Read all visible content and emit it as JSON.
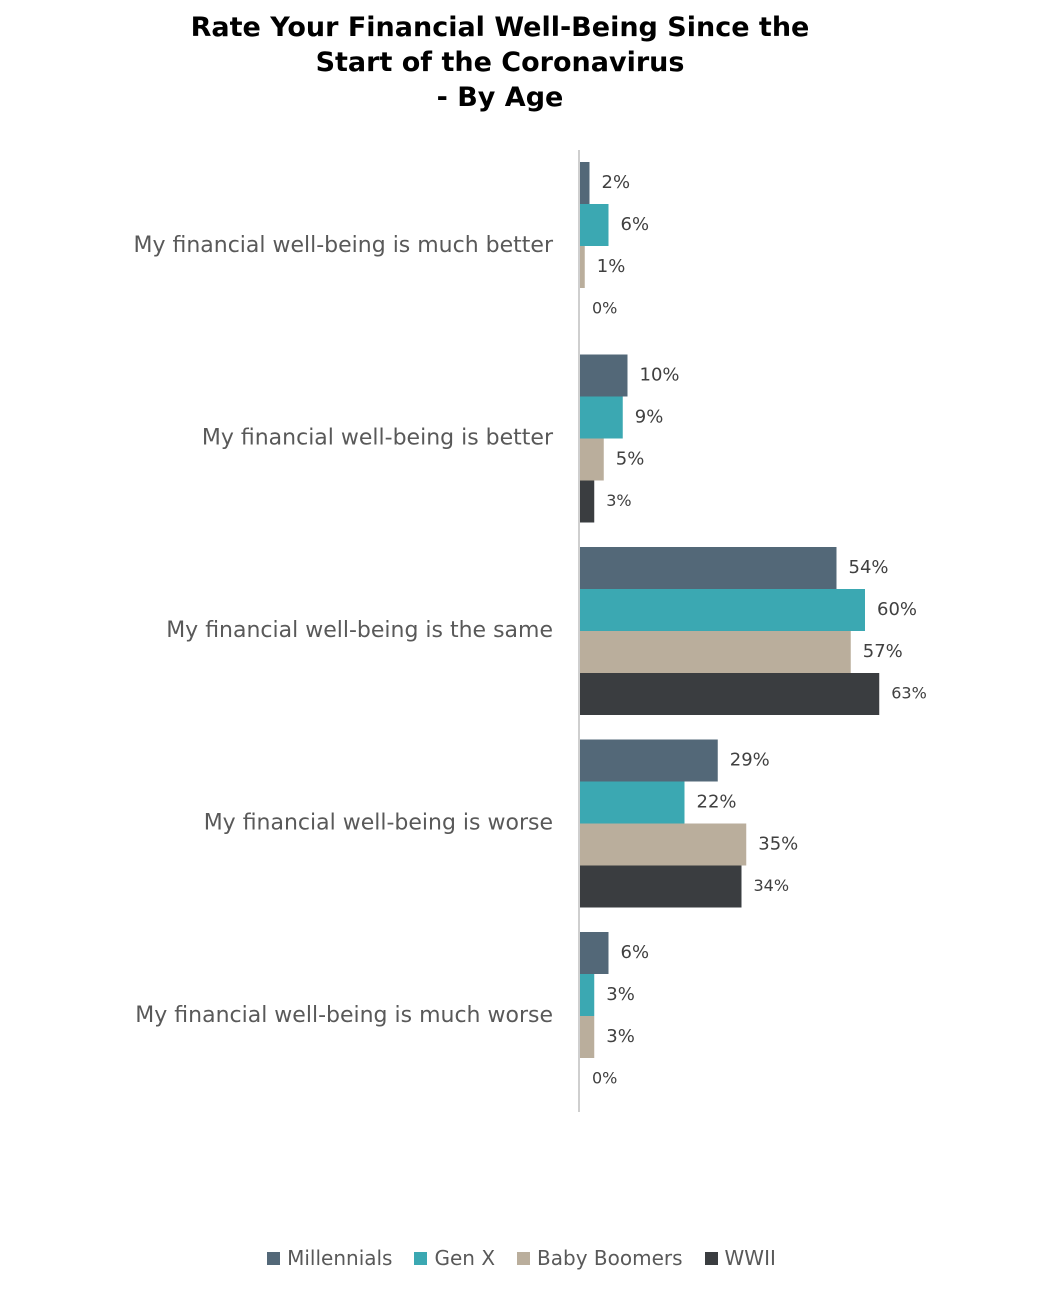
{
  "chart_data": {
    "type": "bar",
    "orientation": "horizontal",
    "title_lines": [
      "Rate Your Financial Well-Being Since the",
      "Start of the Coronavirus",
      "- By Age"
    ],
    "categories": [
      "My financial well-being is much better",
      "My financial well-being is better",
      "My financial well-being is the same",
      "My financial well-being is worse",
      "My financial well-being is much worse"
    ],
    "series": [
      {
        "name": "Millennials",
        "color": "#536878",
        "values": [
          2,
          10,
          54,
          29,
          6
        ],
        "labels": [
          "2%",
          "10%",
          "54%",
          "29%",
          "6%"
        ]
      },
      {
        "name": "Gen X",
        "color": "#3ba8b2",
        "values": [
          6,
          9,
          60,
          22,
          3
        ],
        "labels": [
          "6%",
          "9%",
          "60%",
          "22%",
          "3%"
        ]
      },
      {
        "name": "Baby Boomers",
        "color": "#baae9c",
        "values": [
          1,
          5,
          57,
          35,
          3
        ],
        "labels": [
          "1%",
          "5%",
          "57%",
          "35%",
          "3%"
        ]
      },
      {
        "name": "WWII",
        "color": "#3a3d40",
        "values": [
          0,
          3,
          63,
          34,
          0
        ],
        "labels": [
          "0%",
          "3%",
          "63%",
          "34%",
          "0%"
        ]
      }
    ],
    "value_unit": "%",
    "xlim": [
      0,
      100
    ],
    "grid": false,
    "legend_position": "bottom"
  }
}
